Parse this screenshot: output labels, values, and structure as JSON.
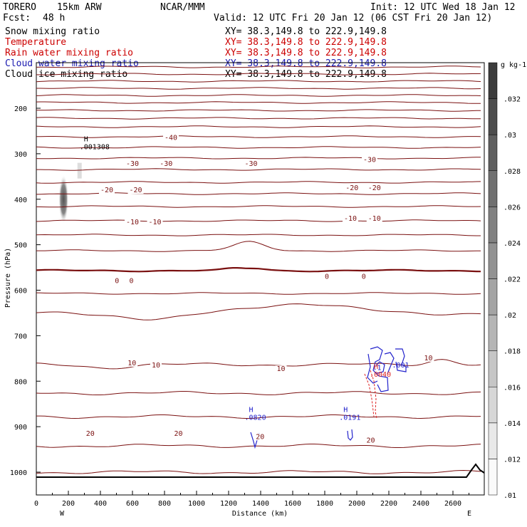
{
  "header": {
    "model": "TORERO",
    "resolution": "15km ARW",
    "org": "NCAR/MMM",
    "init": "Init: 12 UTC Wed 18 Jan 12",
    "fcst_label": "Fcst:",
    "fcst_value": "48 h",
    "valid": "Valid: 12 UTC Fri 20 Jan 12 (06 CST Fri 20 Jan 12)"
  },
  "legend": [
    {
      "name": "Snow mixing ratio",
      "xy": "XY=  38.3,149.8 to 222.9,149.8",
      "color": "#000000"
    },
    {
      "name": "Temperature",
      "xy": "XY=  38.3,149.8 to 222.9,149.8",
      "color": "#cc0000"
    },
    {
      "name": "Rain water mixing ratio",
      "xy": "XY=  38.3,149.8 to 222.9,149.8",
      "color": "#cc0000"
    },
    {
      "name": "Cloud water mixing ratio",
      "xy": "XY=  38.3,149.8 to 222.9,149.8",
      "color": "#1a1ab0"
    },
    {
      "name": "Cloud ice mixing ratio",
      "xy": "XY=  38.3,149.8 to 222.9,149.8",
      "color": "#000000"
    }
  ],
  "colors": {
    "temperature": "#7a1010",
    "rain": "#dd2222",
    "cloud_water": "#2222cc",
    "terrain": "#000000",
    "axes": "#000000"
  },
  "chart_data": {
    "type": "cross-section",
    "xlabel": "Distance (km)",
    "ylabel": "Pressure (hPa)",
    "xlim": [
      0,
      2760
    ],
    "ylim": [
      1050,
      100
    ],
    "x_ticks": [
      0,
      200,
      400,
      600,
      800,
      1000,
      1200,
      1400,
      1600,
      1800,
      2000,
      2200,
      2400,
      2600
    ],
    "y_ticks": [
      200,
      300,
      400,
      500,
      600,
      700,
      800,
      900,
      1000
    ],
    "west_label": "W",
    "east_label": "E",
    "isotherm_labels": [
      {
        "text": "-40",
        "x": 800,
        "p": 270
      },
      {
        "text": "-30",
        "x": 560,
        "p": 327
      },
      {
        "text": "-30",
        "x": 770,
        "p": 327
      },
      {
        "text": "-30",
        "x": 1300,
        "p": 327
      },
      {
        "text": "-30",
        "x": 2040,
        "p": 318
      },
      {
        "text": "-20",
        "x": 400,
        "p": 385
      },
      {
        "text": "-20",
        "x": 580,
        "p": 385
      },
      {
        "text": "-20",
        "x": 1930,
        "p": 380
      },
      {
        "text": "-20",
        "x": 2070,
        "p": 380
      },
      {
        "text": "-10",
        "x": 560,
        "p": 455
      },
      {
        "text": "-10",
        "x": 700,
        "p": 455
      },
      {
        "text": "-10",
        "x": 1920,
        "p": 447
      },
      {
        "text": "-10",
        "x": 2070,
        "p": 447
      },
      {
        "text": "0",
        "x": 490,
        "p": 584
      },
      {
        "text": "0",
        "x": 580,
        "p": 584
      },
      {
        "text": "0",
        "x": 1800,
        "p": 575
      },
      {
        "text": "0",
        "x": 2030,
        "p": 575
      },
      {
        "text": "10",
        "x": 570,
        "p": 765
      },
      {
        "text": "10",
        "x": 720,
        "p": 770
      },
      {
        "text": "10",
        "x": 1500,
        "p": 778
      },
      {
        "text": "10",
        "x": 2420,
        "p": 754
      },
      {
        "text": "20",
        "x": 310,
        "p": 920
      },
      {
        "text": "20",
        "x": 860,
        "p": 920
      },
      {
        "text": "20",
        "x": 1370,
        "p": 927
      },
      {
        "text": "20",
        "x": 2060,
        "p": 935
      }
    ],
    "maxima": [
      {
        "marker": "H",
        "value": ".001308",
        "x": 270,
        "p": 290,
        "field": "Snow mixing ratio"
      },
      {
        "marker": "H",
        "value": ".0820",
        "x": 1300,
        "p": 885,
        "field": "Cloud water mixing ratio"
      },
      {
        "marker": "H",
        "value": ".0191",
        "x": 1890,
        "p": 885,
        "field": "Cloud water mixing ratio"
      },
      {
        "marker": "H",
        "value": ".0040",
        "x": 2080,
        "p": 790,
        "field": "Rain water mixing ratio"
      },
      {
        "marker": "",
        "value": ".001",
        "x": 2220,
        "p": 770,
        "field": "Cloud water mixing ratio"
      },
      {
        "marker": "",
        "value": ".1",
        "x": 2100,
        "p": 775,
        "field": "Cloud water mixing ratio"
      }
    ],
    "colorbar": {
      "units": "g kg-1",
      "levels": [
        ".01",
        ".012",
        ".014",
        ".016",
        ".018",
        ".02",
        ".022",
        ".024",
        ".026",
        ".028",
        ".03",
        ".032"
      ]
    }
  }
}
